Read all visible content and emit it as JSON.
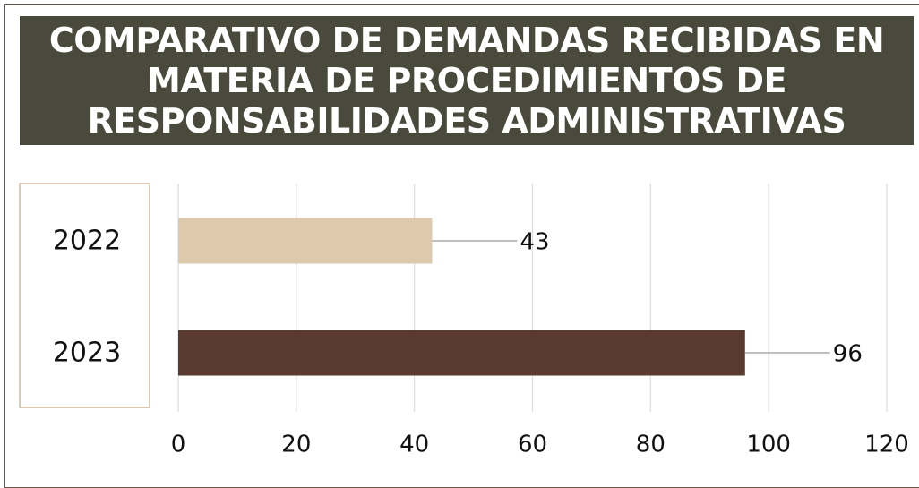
{
  "chart_data": {
    "type": "bar",
    "orientation": "horizontal",
    "title": "COMPARATIVO DE DEMANDAS RECIBIDAS EN MATERIA DE PROCEDIMIENTOS DE RESPONSABILIDADES ADMINISTRATIVAS",
    "categories": [
      "2022",
      "2023"
    ],
    "values": [
      43,
      96
    ],
    "colors": [
      "#dfc9ad",
      "#5a3a30"
    ],
    "xlim": [
      0,
      120
    ],
    "xticks": [
      0,
      20,
      40,
      60,
      80,
      100,
      120
    ],
    "grid": true
  }
}
